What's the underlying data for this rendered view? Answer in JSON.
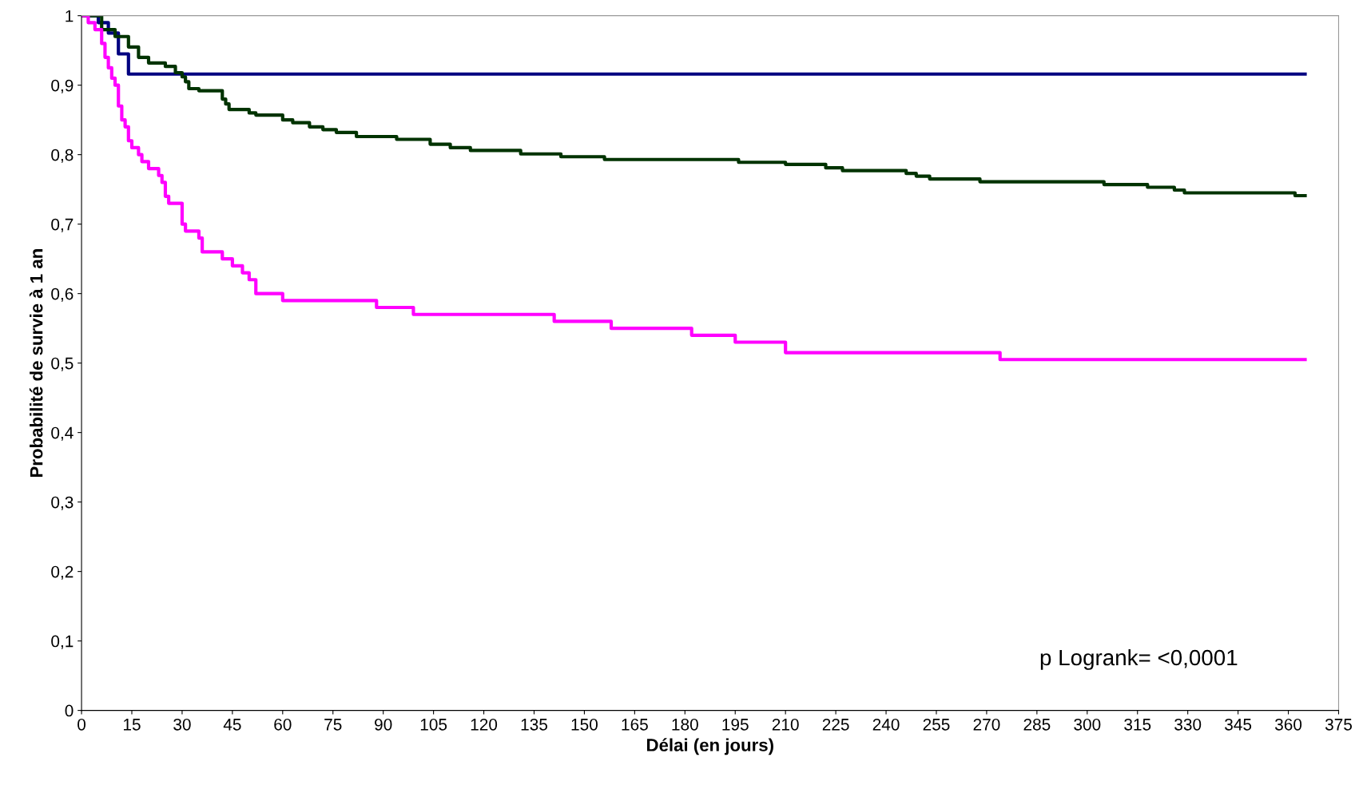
{
  "chart_data": {
    "type": "step",
    "xlabel": "Délai (en jours)",
    "ylabel": "Probabilité de survie à 1 an",
    "annotations": [
      "p Logrank= <0,0001"
    ],
    "xlim": [
      0,
      375
    ],
    "xticks": [
      0,
      15,
      30,
      45,
      60,
      75,
      90,
      105,
      120,
      135,
      150,
      165,
      180,
      195,
      210,
      225,
      240,
      255,
      270,
      285,
      300,
      315,
      330,
      345,
      360,
      375
    ],
    "ylim": [
      0,
      1
    ],
    "yticks": [
      0,
      {
        "value": 0.1,
        "label": "0,1"
      },
      {
        "value": 0.2,
        "label": "0,2"
      },
      {
        "value": 0.3,
        "label": "0,3"
      },
      {
        "value": 0.4,
        "label": "0,4"
      },
      {
        "value": 0.5,
        "label": "0,5"
      },
      {
        "value": 0.6,
        "label": "0,6"
      },
      {
        "value": 0.7,
        "label": "0,7"
      },
      {
        "value": 0.8,
        "label": "0,8"
      },
      {
        "value": 0.9,
        "label": "0,9"
      },
      1
    ],
    "grid": false,
    "legend": false,
    "marker": "none",
    "line_style": "solid",
    "series": [
      {
        "color": "#000080",
        "x": [
          0,
          5,
          8,
          11,
          14,
          365
        ],
        "values": [
          1,
          0.99,
          0.975,
          0.945,
          0.916,
          0.916
        ]
      },
      {
        "color": "#003300",
        "x": [
          0,
          6,
          10,
          14,
          17,
          20,
          25,
          28,
          30,
          31,
          32,
          35,
          42,
          43,
          44,
          50,
          52,
          60,
          63,
          68,
          72,
          76,
          82,
          94,
          104,
          110,
          116,
          131,
          143,
          156,
          196,
          210,
          222,
          227,
          246,
          249,
          253,
          268,
          305,
          318,
          326,
          329,
          362,
          365
        ],
        "values": [
          1,
          0.98,
          0.97,
          0.955,
          0.94,
          0.932,
          0.927,
          0.918,
          0.912,
          0.905,
          0.895,
          0.892,
          0.88,
          0.873,
          0.865,
          0.86,
          0.857,
          0.85,
          0.846,
          0.84,
          0.836,
          0.832,
          0.826,
          0.822,
          0.815,
          0.81,
          0.806,
          0.801,
          0.797,
          0.793,
          0.789,
          0.786,
          0.781,
          0.777,
          0.773,
          0.769,
          0.765,
          0.761,
          0.757,
          0.753,
          0.749,
          0.745,
          0.741,
          0.741
        ]
      },
      {
        "color": "#ff00ff",
        "x": [
          0,
          2,
          4,
          6,
          7,
          8,
          9,
          10,
          11,
          12,
          13,
          14,
          15,
          17,
          18,
          20,
          23,
          24,
          25,
          26,
          30,
          31,
          35,
          36,
          42,
          45,
          48,
          50,
          52,
          60,
          88,
          99,
          141,
          158,
          182,
          195,
          210,
          274,
          365
        ],
        "values": [
          1,
          0.99,
          0.98,
          0.96,
          0.94,
          0.925,
          0.91,
          0.9,
          0.87,
          0.85,
          0.84,
          0.82,
          0.81,
          0.8,
          0.79,
          0.78,
          0.77,
          0.76,
          0.74,
          0.73,
          0.7,
          0.69,
          0.68,
          0.66,
          0.65,
          0.64,
          0.63,
          0.62,
          0.6,
          0.59,
          0.58,
          0.57,
          0.56,
          0.55,
          0.54,
          0.53,
          0.515,
          0.505,
          0.505
        ]
      }
    ]
  }
}
